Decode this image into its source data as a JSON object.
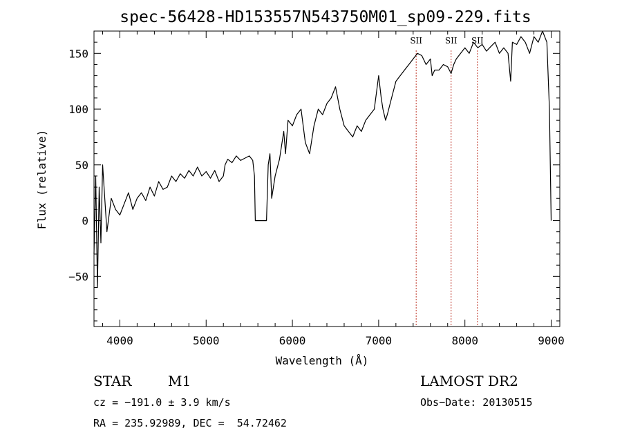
{
  "chart_data": {
    "type": "line",
    "title": "spec-56428-HD153557N543750M01_sp09-229.fits",
    "xlabel": "Wavelength (Å)",
    "ylabel": "Flux (relative)",
    "xlim": [
      3700,
      9100
    ],
    "ylim": [
      -95,
      170
    ],
    "x_ticks": [
      4000,
      5000,
      6000,
      7000,
      8000,
      9000
    ],
    "y_ticks": [
      -50,
      0,
      50,
      100,
      150
    ],
    "grid": false,
    "series": [
      {
        "x": [
          3700,
          3720,
          3740,
          3760,
          3780,
          3800,
          3850,
          3900,
          3950,
          4000,
          4050,
          4100,
          4150,
          4200,
          4250,
          4300,
          4350,
          4400,
          4450,
          4500,
          4550,
          4600,
          4650,
          4700,
          4750,
          4800,
          4850,
          4900,
          4950,
          5000,
          5050,
          5100,
          5150,
          5200,
          5220,
          5250,
          5300,
          5350,
          5400,
          5450,
          5500,
          5540,
          5560,
          5570,
          5580,
          5600,
          5650,
          5700,
          5720,
          5740,
          5760,
          5780,
          5800,
          5850,
          5880,
          5900,
          5920,
          5950,
          6000,
          6050,
          6100,
          6150,
          6200,
          6250,
          6300,
          6350,
          6400,
          6450,
          6500,
          6550,
          6600,
          6650,
          6700,
          6750,
          6800,
          6850,
          6900,
          6950,
          7000,
          7030,
          7050,
          7080,
          7100,
          7150,
          7200,
          7250,
          7300,
          7350,
          7400,
          7450,
          7500,
          7550,
          7600,
          7620,
          7650,
          7700,
          7750,
          7800,
          7840,
          7870,
          7900,
          7950,
          8000,
          8050,
          8100,
          8150,
          8200,
          8250,
          8300,
          8350,
          8400,
          8450,
          8500,
          8530,
          8550,
          8600,
          8650,
          8700,
          8750,
          8800,
          8850,
          8900,
          8950,
          8980,
          9000
        ],
        "y": [
          -30,
          40,
          -60,
          30,
          -20,
          50,
          -10,
          20,
          10,
          5,
          15,
          25,
          10,
          20,
          25,
          18,
          30,
          22,
          35,
          28,
          30,
          40,
          35,
          42,
          38,
          45,
          40,
          48,
          40,
          44,
          38,
          45,
          35,
          40,
          50,
          55,
          52,
          58,
          54,
          56,
          58,
          54,
          40,
          0,
          0,
          0,
          0,
          0,
          50,
          60,
          20,
          30,
          40,
          55,
          70,
          80,
          60,
          90,
          85,
          95,
          100,
          70,
          60,
          85,
          100,
          95,
          105,
          110,
          120,
          100,
          85,
          80,
          75,
          85,
          80,
          90,
          95,
          100,
          130,
          110,
          100,
          90,
          95,
          110,
          125,
          130,
          135,
          140,
          145,
          150,
          148,
          140,
          145,
          130,
          135,
          135,
          140,
          138,
          132,
          140,
          145,
          150,
          155,
          150,
          160,
          155,
          158,
          152,
          156,
          160,
          150,
          155,
          150,
          125,
          160,
          158,
          165,
          160,
          150,
          165,
          160,
          170,
          160,
          100,
          0
        ]
      }
    ],
    "line_markers": [
      {
        "x": 7435,
        "label": "SII"
      },
      {
        "x": 7840,
        "label": "SII"
      },
      {
        "x": 8145,
        "label": "SII"
      }
    ]
  },
  "info": {
    "object_class": "STAR",
    "subclass": "M1",
    "survey": "LAMOST DR2",
    "redshift": "cz = −191.0 ± 3.9 km/s",
    "obs_date": "Obs−Date: 20130515",
    "coords": "RA = 235.92989, DEC =  54.72462"
  }
}
